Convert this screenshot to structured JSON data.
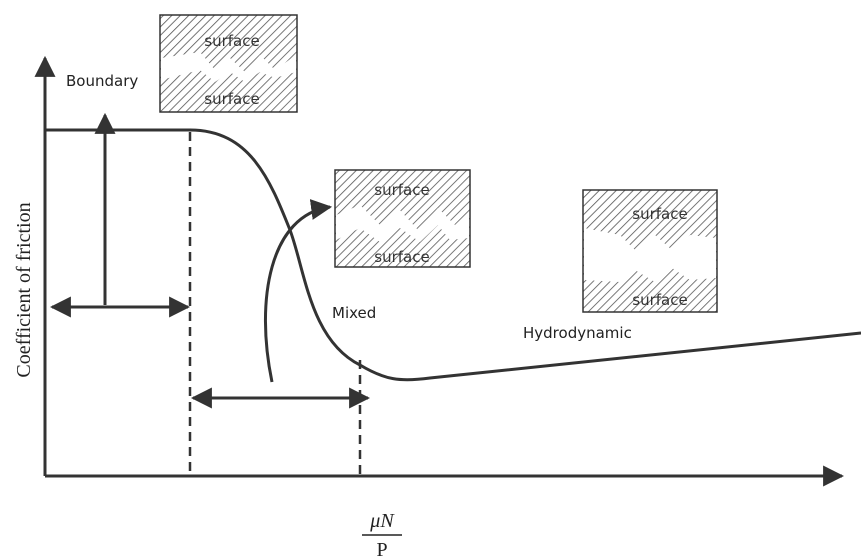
{
  "axes": {
    "y_label": "Coefficient of friction",
    "x_label_numerator": "μN",
    "x_label_denominator": "P"
  },
  "regimes": [
    {
      "label": "Boundary",
      "surfaces": [
        "surface",
        "surface"
      ]
    },
    {
      "label": "Mixed",
      "surfaces": [
        "surface",
        "surface"
      ]
    },
    {
      "label": "Hydrodynamic",
      "surfaces": [
        "surface",
        "surface"
      ]
    }
  ]
}
